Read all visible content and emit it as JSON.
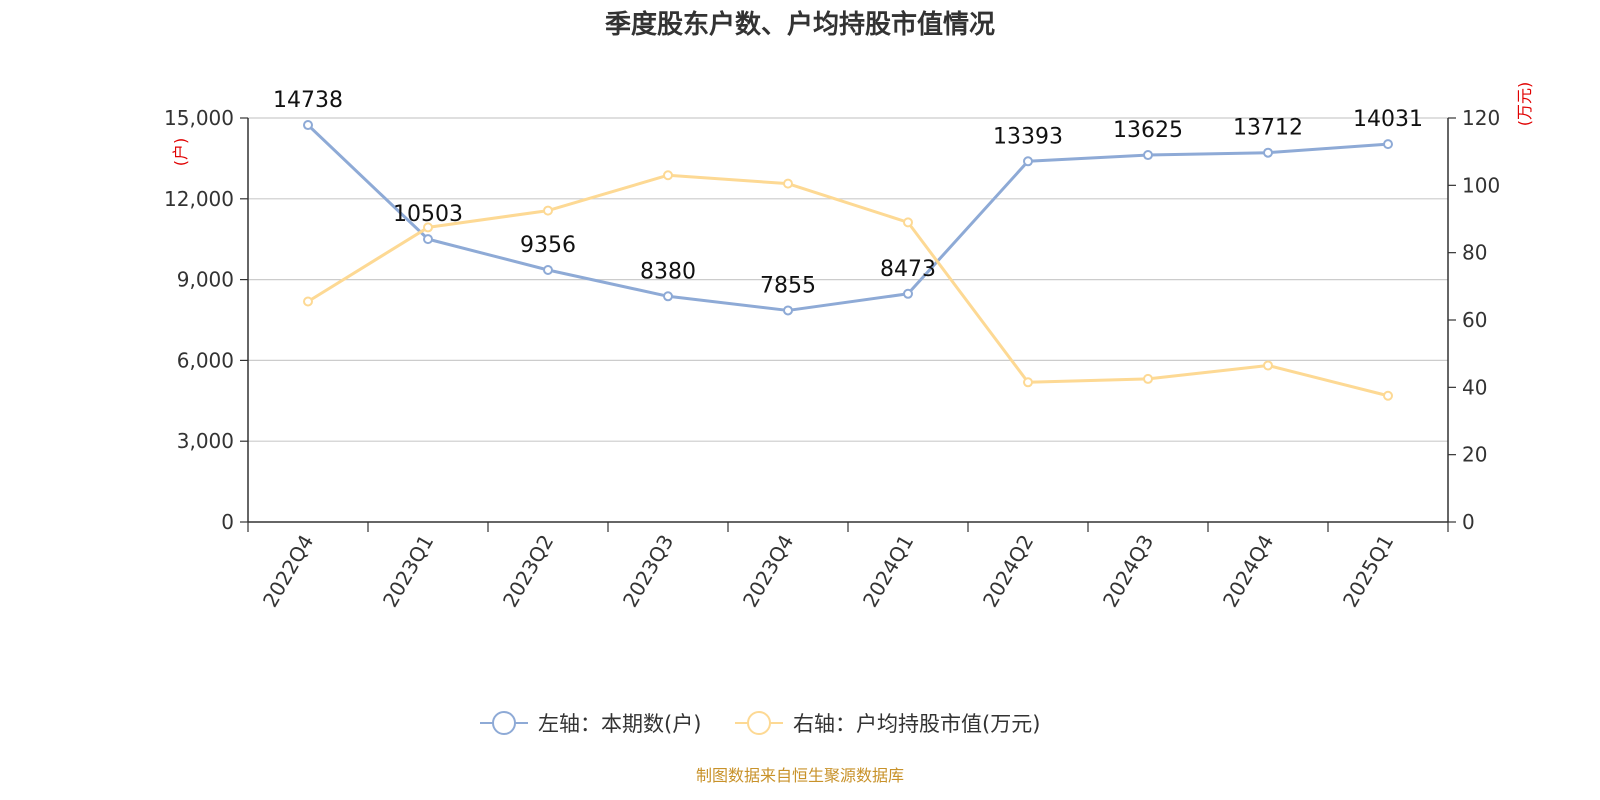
{
  "chart_data": {
    "type": "line",
    "title": "季度股东户数、户均持股市值情况",
    "categories": [
      "2022Q4",
      "2023Q1",
      "2023Q2",
      "2023Q3",
      "2023Q4",
      "2024Q1",
      "2024Q2",
      "2024Q3",
      "2024Q4",
      "2025Q1"
    ],
    "y_left": {
      "unit": "(户)",
      "ylim": [
        0,
        15000
      ],
      "ticks": [
        "0",
        "3,000",
        "6,000",
        "9,000",
        "12,000",
        "15,000"
      ]
    },
    "y_right": {
      "unit": "(万元)",
      "ylim": [
        0,
        120
      ],
      "ticks": [
        "0",
        "20",
        "40",
        "60",
        "80",
        "100",
        "120"
      ]
    },
    "grid": true,
    "legend_position": "bottom",
    "series": [
      {
        "name": "左轴：本期数(户)",
        "axis": "left",
        "color": "#8eaad6",
        "values": [
          14738,
          10503,
          9356,
          8380,
          7855,
          8473,
          13393,
          13625,
          13712,
          14031
        ],
        "labels": [
          "14738",
          "10503",
          "9356",
          "8380",
          "7855",
          "8473",
          "13393",
          "13625",
          "13712",
          "14031"
        ]
      },
      {
        "name": "右轴：户均持股市值(万元)",
        "axis": "right",
        "color": "#fdd994",
        "values": [
          65.5,
          87.5,
          92.5,
          103,
          100.5,
          89,
          41.5,
          42.5,
          46.5,
          37.5
        ]
      }
    ],
    "unit_color": "#e00000",
    "source": "制图数据来自恒生聚源数据库",
    "source_color": "#c8922a"
  }
}
